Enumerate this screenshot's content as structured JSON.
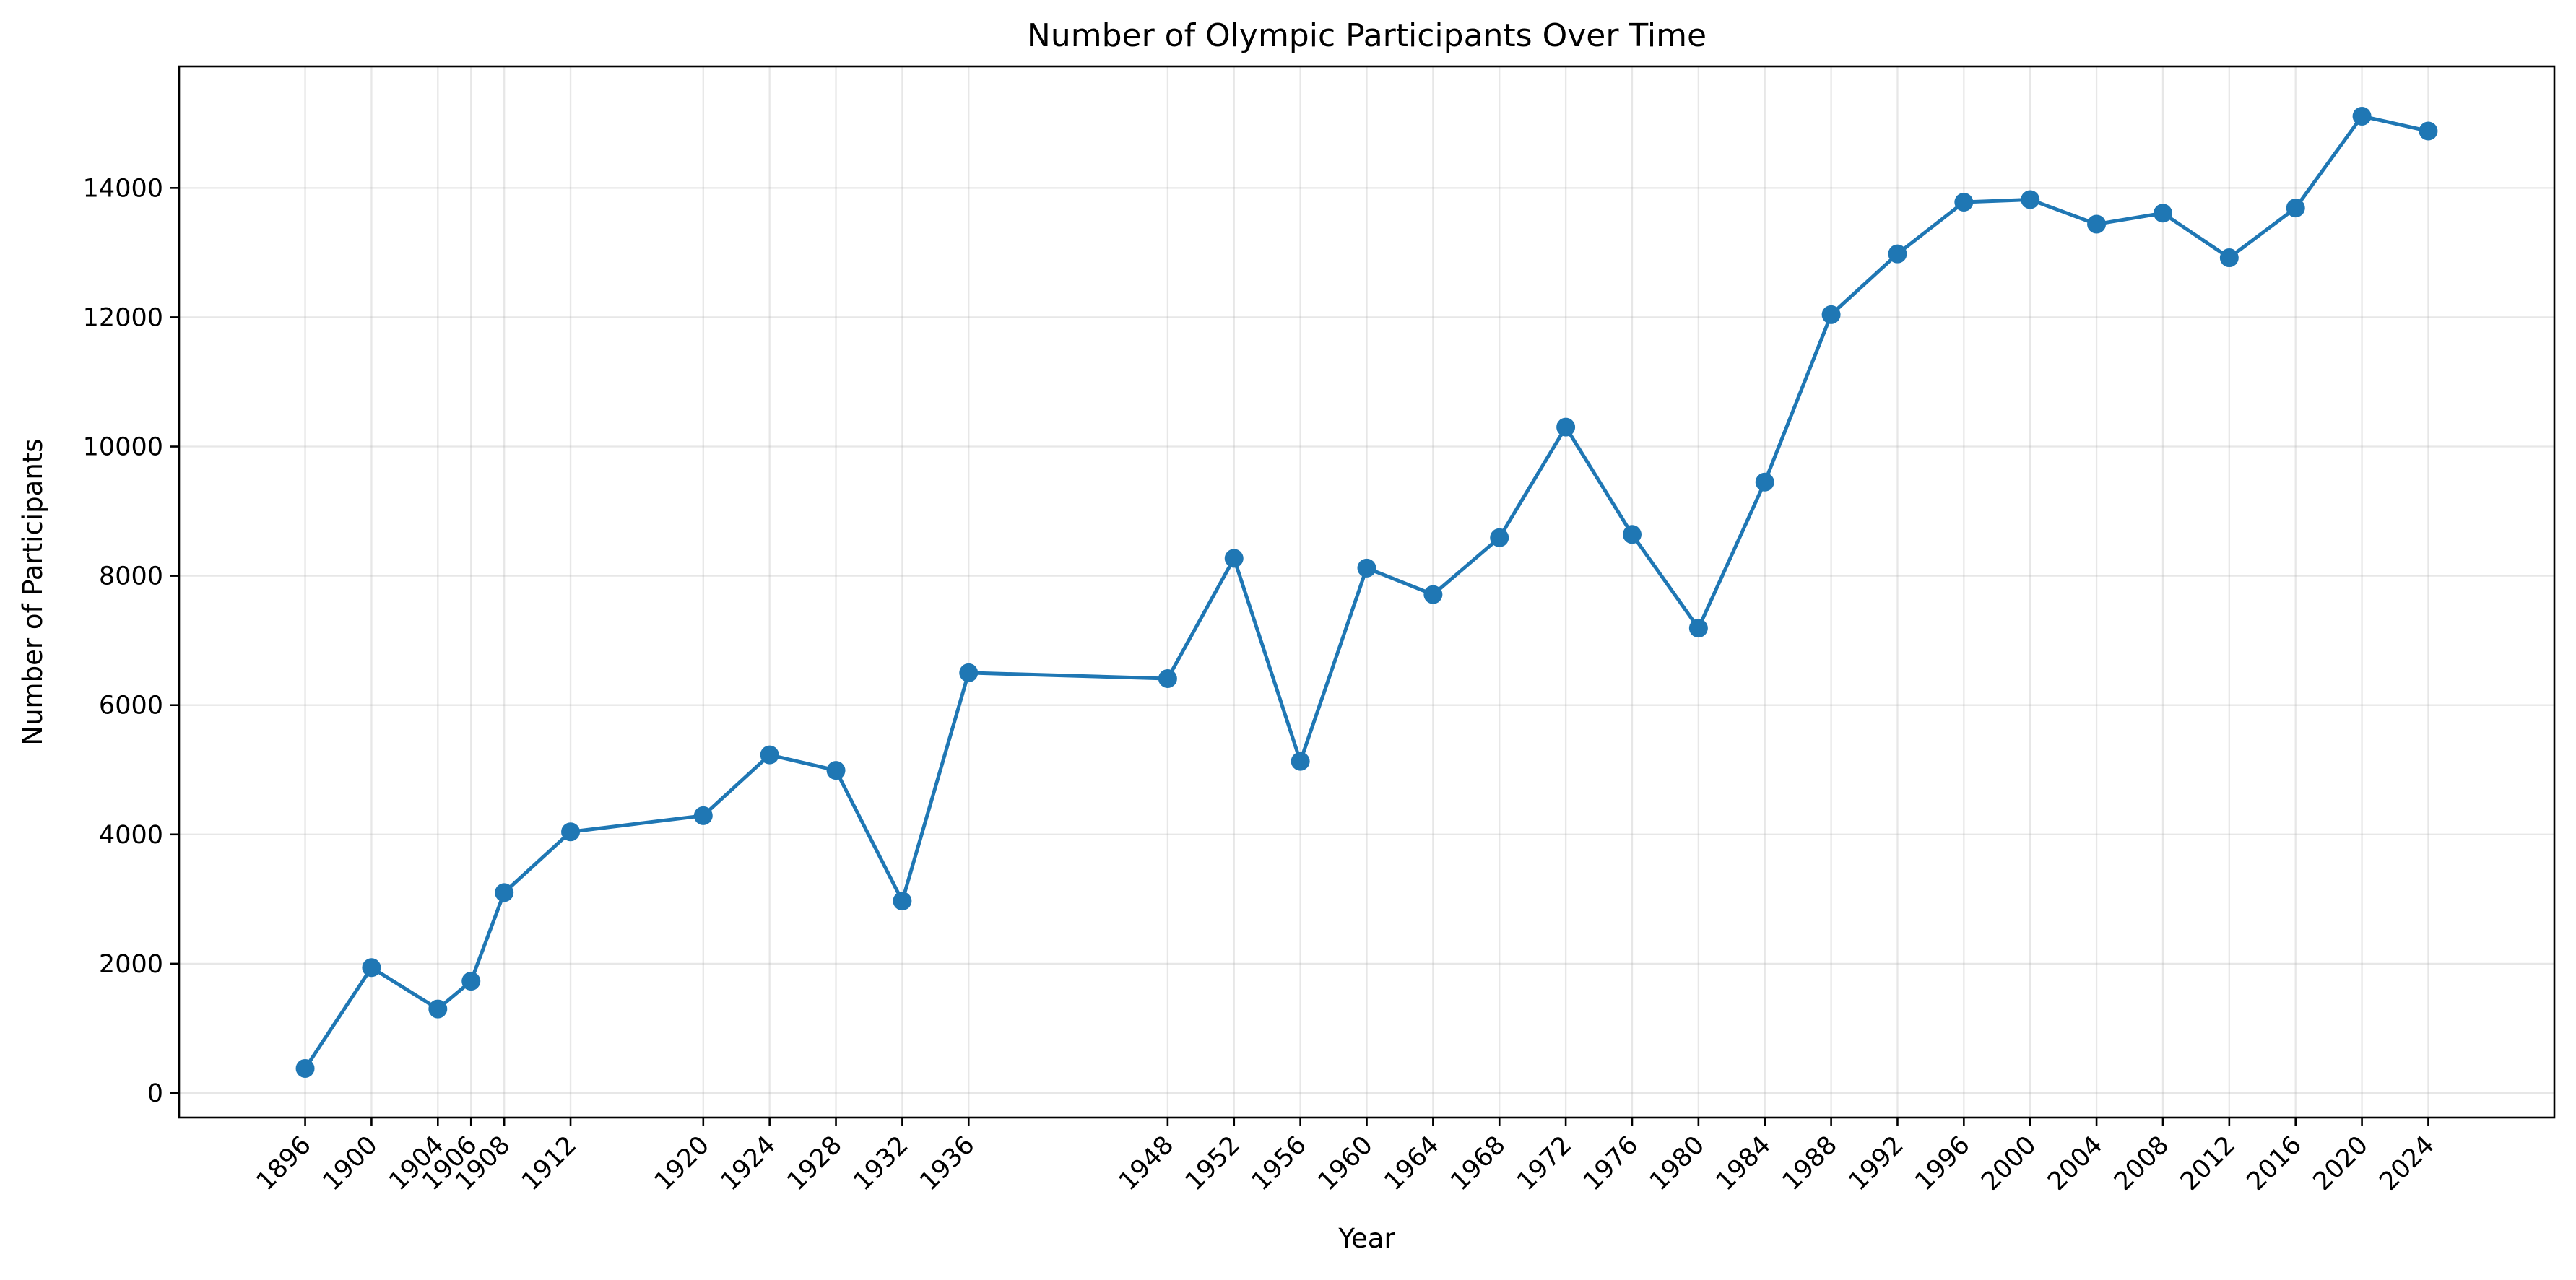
{
  "chart_data": {
    "type": "line",
    "title": "Number of Olympic Participants Over Time",
    "xlabel": "Year",
    "ylabel": "Number of Participants",
    "x": [
      1896,
      1900,
      1904,
      1906,
      1908,
      1912,
      1920,
      1924,
      1928,
      1932,
      1936,
      1948,
      1952,
      1956,
      1960,
      1964,
      1968,
      1972,
      1976,
      1980,
      1984,
      1988,
      1992,
      1996,
      2000,
      2004,
      2008,
      2012,
      2016,
      2020,
      2024
    ],
    "xticks": [
      "1896",
      "1900",
      "1904",
      "1906",
      "1908",
      "1912",
      "1920",
      "1924",
      "1928",
      "1932",
      "1936",
      "1948",
      "1952",
      "1956",
      "1960",
      "1964",
      "1968",
      "1972",
      "1976",
      "1980",
      "1984",
      "1988",
      "1992",
      "1996",
      "2000",
      "2004",
      "2008",
      "2012",
      "2016",
      "2020",
      "2024"
    ],
    "series": [
      {
        "values": [
          380,
          1940,
          1300,
          1730,
          3100,
          4040,
          4290,
          5230,
          4990,
          2970,
          6500,
          6410,
          8270,
          5130,
          8120,
          7710,
          8590,
          10300,
          8640,
          7190,
          9450,
          12040,
          12980,
          13780,
          13820,
          13440,
          13610,
          12920,
          13690,
          15110,
          14880
        ]
      }
    ],
    "yticks": [
      0,
      2000,
      4000,
      6000,
      8000,
      10000,
      12000,
      14000
    ],
    "ylim": [
      -380,
      15880
    ],
    "xlim": [
      1888.4,
      2031.6
    ],
    "grid": true,
    "x_tick_rotation": 45,
    "color": "#1f77b4"
  }
}
